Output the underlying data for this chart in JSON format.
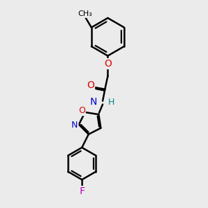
{
  "background_color": "#ebebeb",
  "bond_color": "#000000",
  "bond_width": 1.8,
  "atom_colors": {
    "O": "#dd0000",
    "N": "#0000cc",
    "F": "#bb00bb",
    "H": "#008888",
    "C": "#000000"
  },
  "font_size": 9,
  "fig_width": 3.0,
  "fig_height": 3.0,
  "dpi": 100
}
